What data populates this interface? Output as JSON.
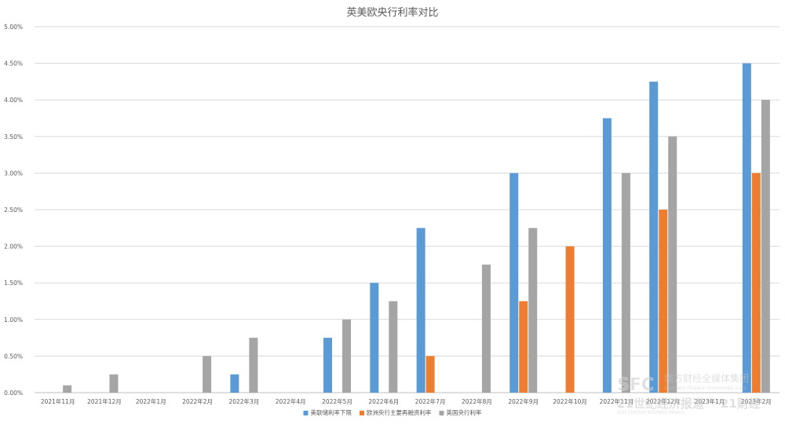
{
  "chart_data": {
    "type": "bar",
    "title": "英美欧央行利率对比",
    "xlabel": "",
    "ylabel": "",
    "ylim": [
      0,
      5
    ],
    "y_tick_labels": [
      "0.00%",
      "0.50%",
      "1.00%",
      "1.50%",
      "2.00%",
      "2.50%",
      "3.00%",
      "3.50%",
      "4.00%",
      "4.50%",
      "5.00%"
    ],
    "grid": true,
    "legend_position": "bottom",
    "categories": [
      "2021年11月",
      "2021年12月",
      "2022年1月",
      "2022年2月",
      "2022年3月",
      "2022年4月",
      "2022年5月",
      "2022年6月",
      "2022年7月",
      "2022年8月",
      "2022年9月",
      "2022年10月",
      "2022年11月",
      "2022年12月",
      "2023年1月",
      "2023年2月"
    ],
    "series": [
      {
        "name": "美联储利率下限",
        "color": "#5b9bd5",
        "values": [
          null,
          null,
          null,
          null,
          0.25,
          null,
          0.75,
          1.5,
          2.25,
          null,
          3.0,
          null,
          3.75,
          4.25,
          null,
          4.5
        ]
      },
      {
        "name": "欧洲央行主要再融资利率",
        "color": "#ed7d31",
        "values": [
          null,
          null,
          null,
          null,
          null,
          null,
          null,
          null,
          0.5,
          null,
          1.25,
          2.0,
          null,
          2.5,
          null,
          3.0
        ]
      },
      {
        "name": "英国央行利率",
        "color": "#a5a5a5",
        "values": [
          0.1,
          0.25,
          null,
          0.5,
          0.75,
          null,
          1.0,
          1.25,
          null,
          1.75,
          2.25,
          null,
          3.0,
          3.5,
          null,
          4.0
        ]
      }
    ]
  },
  "watermark": {
    "logo_text": "SFC",
    "group_name": "南方财经全媒体集团",
    "group_name_en": "Southern Finance Omnimedia Corp",
    "paper_name": "21世纪经济报道",
    "brand": "21财经",
    "paper_name_en": "21ST CENTURY BUSINESS HERALD"
  }
}
